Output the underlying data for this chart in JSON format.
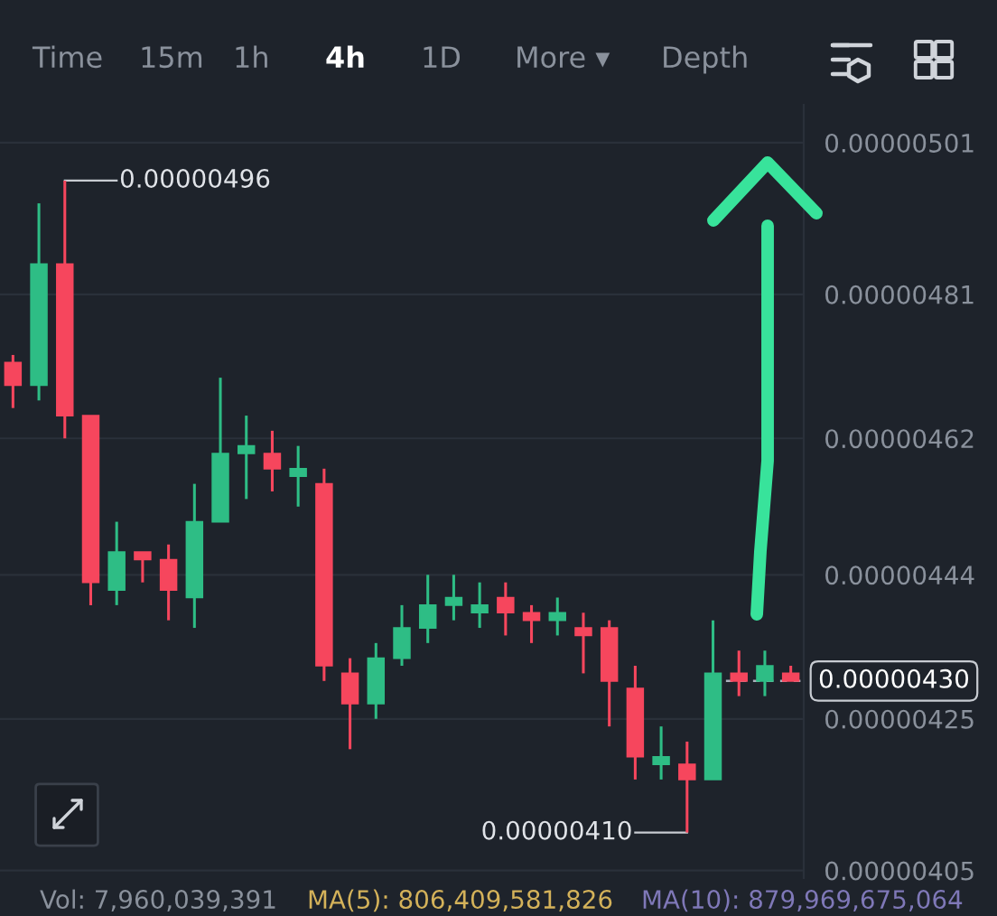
{
  "chart_data": {
    "type": "candlestick",
    "categories": [
      null,
      null,
      null,
      null,
      null,
      null,
      null,
      null,
      null,
      null,
      null,
      null,
      null,
      null,
      null,
      null,
      null,
      null,
      null,
      null,
      null,
      null,
      null,
      null,
      null,
      null,
      null,
      null,
      null,
      null,
      null
    ],
    "ohlc": [
      [
        4.72e-06,
        4.73e-06,
        4.66e-06,
        4.69e-06
      ],
      [
        4.69e-06,
        4.93e-06,
        4.67e-06,
        4.85e-06
      ],
      [
        4.85e-06,
        4.96e-06,
        4.62e-06,
        4.65e-06
      ],
      [
        4.65e-06,
        4.65e-06,
        4.4e-06,
        4.43e-06
      ],
      [
        4.42e-06,
        4.51e-06,
        4.4e-06,
        4.47e-06
      ],
      [
        4.47e-06,
        4.47e-06,
        4.43e-06,
        4.46e-06
      ],
      [
        4.46e-06,
        4.48e-06,
        4.38e-06,
        4.42e-06
      ],
      [
        4.41e-06,
        4.56e-06,
        4.37e-06,
        4.51e-06
      ],
      [
        4.51e-06,
        4.7e-06,
        4.51e-06,
        4.6e-06
      ],
      [
        4.6e-06,
        4.65e-06,
        4.54e-06,
        4.61e-06
      ],
      [
        4.6e-06,
        4.63e-06,
        4.55e-06,
        4.58e-06
      ],
      [
        4.57e-06,
        4.61e-06,
        4.53e-06,
        4.58e-06
      ],
      [
        4.56e-06,
        4.58e-06,
        4.3e-06,
        4.32e-06
      ],
      [
        4.31e-06,
        4.33e-06,
        4.21e-06,
        4.27e-06
      ],
      [
        4.27e-06,
        4.35e-06,
        4.25e-06,
        4.33e-06
      ],
      [
        4.33e-06,
        4.4e-06,
        4.32e-06,
        4.37e-06
      ],
      [
        4.37e-06,
        4.44e-06,
        4.35e-06,
        4.4e-06
      ],
      [
        4.4e-06,
        4.44e-06,
        4.38e-06,
        4.41e-06
      ],
      [
        4.39e-06,
        4.43e-06,
        4.37e-06,
        4.4e-06
      ],
      [
        4.41e-06,
        4.43e-06,
        4.36e-06,
        4.39e-06
      ],
      [
        4.39e-06,
        4.4e-06,
        4.35e-06,
        4.38e-06
      ],
      [
        4.38e-06,
        4.41e-06,
        4.36e-06,
        4.39e-06
      ],
      [
        4.37e-06,
        4.39e-06,
        4.31e-06,
        4.36e-06
      ],
      [
        4.37e-06,
        4.38e-06,
        4.24e-06,
        4.3e-06
      ],
      [
        4.29e-06,
        4.32e-06,
        4.17e-06,
        4.2e-06
      ],
      [
        4.19e-06,
        4.24e-06,
        4.17e-06,
        4.2e-06
      ],
      [
        4.19e-06,
        4.22e-06,
        4.1e-06,
        4.17e-06
      ],
      [
        4.17e-06,
        4.38e-06,
        4.17e-06,
        4.31e-06
      ],
      [
        4.31e-06,
        4.34e-06,
        4.28e-06,
        4.3e-06
      ],
      [
        4.3e-06,
        4.34e-06,
        4.28e-06,
        4.32e-06
      ],
      [
        4.31e-06,
        4.32e-06,
        4.3e-06,
        4.3e-06
      ]
    ],
    "colors": [
      "#f6465d",
      "#2ebd85",
      "#f6465d",
      "#f6465d",
      "#2ebd85",
      "#f6465d",
      "#f6465d",
      "#2ebd85",
      "#2ebd85",
      "#2ebd85",
      "#f6465d",
      "#2ebd85",
      "#f6465d",
      "#f6465d",
      "#2ebd85",
      "#2ebd85",
      "#2ebd85",
      "#2ebd85",
      "#2ebd85",
      "#f6465d",
      "#f6465d",
      "#2ebd85",
      "#f6465d",
      "#f6465d",
      "#f6465d",
      "#2ebd85",
      "#f6465d",
      "#2ebd85",
      "#f6465d",
      "#2ebd85",
      "#f6465d"
    ],
    "ylim": [
      4.04e-06,
      5.06e-06
    ],
    "yticks": [
      {
        "value": 5.01e-06,
        "label": "0.00000501"
      },
      {
        "value": 4.81e-06,
        "label": "0.00000481"
      },
      {
        "value": 4.62e-06,
        "label": "0.00000462"
      },
      {
        "value": 4.44e-06,
        "label": "0.00000444"
      },
      {
        "value": 4.25e-06,
        "label": "0.00000425"
      },
      {
        "value": 4.05e-06,
        "label": "0.00000405"
      }
    ],
    "tick_labels": "y",
    "grid": "y",
    "ref_lines": [
      {
        "axis": "y",
        "value": 4.3e-06,
        "label": "0.00000430",
        "color": "#aab0bb",
        "line_style": "dashed"
      }
    ],
    "annotations": [
      "0.00000496",
      "0.00000410",
      "Time",
      "15m",
      "1h",
      "4h",
      "1D",
      "More ▾",
      "Depth",
      "Vol: 7,960,039,391",
      "MA(5): 806,409,581,826",
      "MA(10): 879,969,675,064"
    ]
  }
}
